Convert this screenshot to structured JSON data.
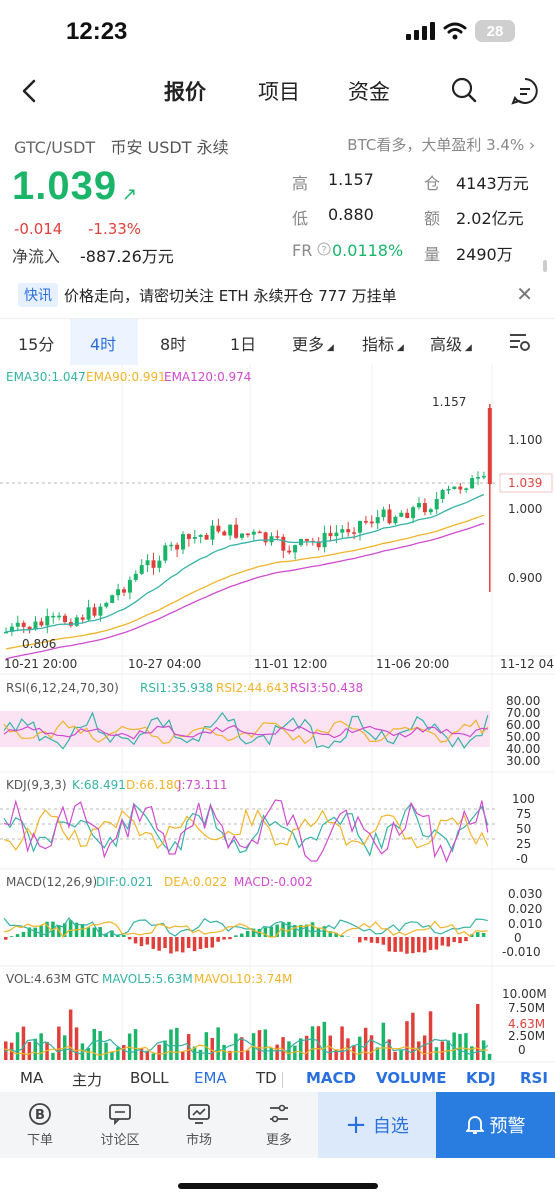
{
  "status": {
    "time": "12:23",
    "battery": "28"
  },
  "nav": {
    "tabs": [
      "报价",
      "项目",
      "资金"
    ],
    "active": 0
  },
  "quote": {
    "pair": "GTC/USDT",
    "exchange": "币安 USDT 永续",
    "tip": "BTC看多，大单盈利 3.4%",
    "tip_arrow": "›",
    "price": "1.039",
    "price_arrow": "↗",
    "change": "-0.014",
    "change_pct": "-1.33%",
    "inflow_label": "净流入",
    "inflow_value": "-887.26万元",
    "stats": {
      "high_label": "高",
      "high": "1.157",
      "low_label": "低",
      "low": "0.880",
      "fr_label": "FR",
      "fr": "0.0118%",
      "oi_label": "仓",
      "oi": "4143万元",
      "amount_label": "额",
      "amount": "2.02亿元",
      "volume_label": "量",
      "volume": "2490万"
    }
  },
  "news": {
    "tag": "快讯",
    "text": "价格走向，请密切关注     ETH 永续开仓 777 万挂单"
  },
  "intervals": {
    "items": [
      "15分",
      "4时",
      "8时",
      "1日",
      "更多",
      "指标",
      "高级"
    ],
    "active": 1
  },
  "chart": {
    "ema_legend": {
      "ema30": "EMA30:1.047",
      "ema90": "EMA90:0.991",
      "ema120": "EMA120:0.974"
    },
    "price_ticks": [
      "1.100",
      "1.000",
      "0.900"
    ],
    "last_price_tag": "1.039",
    "high_marker": "1.157",
    "low_marker": "0.806",
    "time_ticks": [
      "10-21 20:00",
      "10-27 04:00",
      "11-01 12:00",
      "11-06 20:00",
      "11-12 04"
    ],
    "rsi": {
      "legend": "RSI(6,12,24,70,30)",
      "rsi1": "RSI1:35.938",
      "rsi2": "RSI2:44.643",
      "rsi3": "RSI3:50.438",
      "ticks": [
        "80.00",
        "70.00",
        "60.00",
        "50.00",
        "40.00",
        "30.00"
      ]
    },
    "kdj": {
      "legend": "KDJ(9,3,3)",
      "k": "K:68.491",
      "d": "D:66.180",
      "j": "J:73.111",
      "ticks": [
        "100",
        "75",
        "50",
        "25",
        "-0"
      ]
    },
    "macd": {
      "legend": "MACD(12,26,9)",
      "dif": "DIF:0.021",
      "dea": "DEA:0.022",
      "macd": "MACD:-0.002",
      "ticks": [
        "0.030",
        "0.020",
        "0.010",
        "0",
        "-0.010"
      ]
    },
    "vol": {
      "legend": "VOL:4.63M GTC",
      "ma5": "MAVOL5:5.63M",
      "ma10": "MAVOL10:3.74M",
      "ticks": [
        "10.00M",
        "7.50M",
        "4.63M",
        "2.50M",
        "0"
      ]
    }
  },
  "indicator_tabs": [
    "MA",
    "主力",
    "BOLL",
    "EMA",
    "TD",
    "MACD",
    "VOLUME",
    "KDJ",
    "RSI"
  ],
  "bottom": {
    "items": [
      "下单",
      "讨论区",
      "市场",
      "更多"
    ],
    "watch": "自选",
    "alert": "预警"
  },
  "colors": {
    "up": "#1bb56a",
    "down": "#e0403b",
    "accent": "#2a6fe0",
    "ema30": "#35b3a6",
    "ema90": "#f0b429",
    "ema120": "#d04bd0"
  }
}
